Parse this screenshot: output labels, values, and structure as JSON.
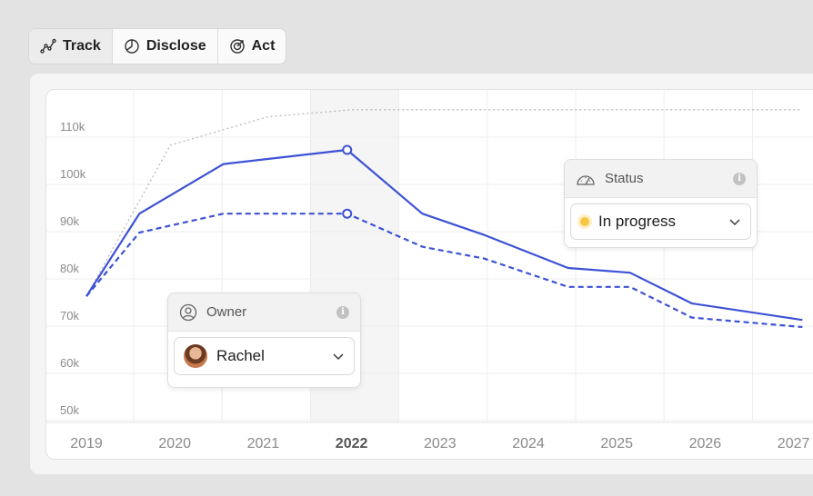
{
  "tabs": [
    {
      "label": "Track",
      "icon": "trend-line-icon",
      "active": true
    },
    {
      "label": "Disclose",
      "icon": "pie-chart-icon",
      "active": false
    },
    {
      "label": "Act",
      "icon": "target-icon",
      "active": false
    }
  ],
  "owner_card": {
    "title": "Owner",
    "selected": "Rachel"
  },
  "status_card": {
    "title": "Status",
    "selected": "In progress",
    "status_color": "#f6c744"
  },
  "chart_data": {
    "type": "line",
    "x_labels": [
      "2019",
      "2020",
      "2021",
      "2022",
      "2023",
      "2024",
      "2025",
      "2026",
      "2027"
    ],
    "highlight_x": "2022",
    "y_ticks": [
      "110k",
      "100k",
      "90k",
      "80k",
      "70k",
      "60k",
      "50k"
    ],
    "ylim": [
      45000,
      115000
    ],
    "grid": true,
    "series": [
      {
        "style": "dotted",
        "color": "#b9b9b9",
        "points": [
          [
            2019.0,
            74000
          ],
          [
            2019.95,
            106000
          ],
          [
            2021.05,
            112000
          ],
          [
            2022.0,
            113500
          ],
          [
            2027.1,
            113500
          ]
        ]
      },
      {
        "style": "solid",
        "color": "#3d52d5",
        "points": [
          [
            2019.0,
            74000
          ],
          [
            2019.6,
            91500
          ],
          [
            2020.55,
            102000
          ],
          [
            2021.95,
            105000
          ],
          [
            2022.8,
            91500
          ],
          [
            2023.5,
            87000
          ],
          [
            2024.45,
            80000
          ],
          [
            2025.15,
            79000
          ],
          [
            2025.85,
            72500
          ],
          [
            2027.1,
            69000
          ]
        ],
        "markers": [
          [
            2021.95,
            105000
          ]
        ]
      },
      {
        "style": "dashed",
        "color": "#3d52d5",
        "points": [
          [
            2019.0,
            74000
          ],
          [
            2019.6,
            87500
          ],
          [
            2020.55,
            91500
          ],
          [
            2021.95,
            91500
          ],
          [
            2022.8,
            84500
          ],
          [
            2023.5,
            82000
          ],
          [
            2024.45,
            76000
          ],
          [
            2025.15,
            76000
          ],
          [
            2025.85,
            69500
          ],
          [
            2027.1,
            67500
          ]
        ],
        "markers": [
          [
            2021.95,
            91500
          ]
        ]
      }
    ]
  }
}
